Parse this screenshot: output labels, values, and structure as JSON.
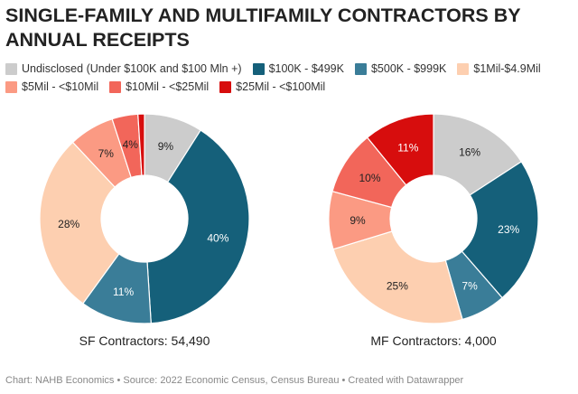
{
  "title": "SINGLE-FAMILY AND MULTIFAMILY CONTRACTORS BY ANNUAL RECEIPTS",
  "legend": [
    {
      "label": "Undisclosed (Under $100K and $100 Mln +)",
      "color": "#cccccc"
    },
    {
      "label": "$100K - $499K",
      "color": "#15607a"
    },
    {
      "label": "$500K - $999K",
      "color": "#3a7d98"
    },
    {
      "label": "$1Mil-$4.9Mil",
      "color": "#fdcfb0"
    },
    {
      "label": "$5Mil - <$10Mil",
      "color": "#fb9a83"
    },
    {
      "label": "$10Mil - <$25Mil",
      "color": "#f2665a"
    },
    {
      "label": "$25Mil - <$100Mil",
      "color": "#d70d0d"
    }
  ],
  "chart_data": [
    {
      "type": "pie",
      "subtype": "donut",
      "title": "SF Contractors: 54,490",
      "categories": [
        "Undisclosed (Under $100K and $100 Mln +)",
        "$100K - $499K",
        "$500K - $999K",
        "$1Mil-$4.9Mil",
        "$5Mil - <$10Mil",
        "$10Mil - <$25Mil",
        "$25Mil - <$100Mil"
      ],
      "values": [
        9,
        40,
        11,
        28,
        7,
        4,
        1
      ],
      "labels": [
        "9%",
        "40%",
        "11%",
        "28%",
        "7%",
        "4%",
        ""
      ]
    },
    {
      "type": "pie",
      "subtype": "donut",
      "title": "MF Contractors: 4,000",
      "categories": [
        "Undisclosed (Under $100K and $100 Mln +)",
        "$100K - $499K",
        "$500K - $999K",
        "$1Mil-$4.9Mil",
        "$5Mil - <$10Mil",
        "$10Mil - <$25Mil",
        "$25Mil - <$100Mil"
      ],
      "values": [
        16,
        23,
        7,
        25,
        9,
        10,
        11
      ],
      "labels": [
        "16%",
        "23%",
        "7%",
        "25%",
        "9%",
        "10%",
        "11%"
      ]
    }
  ],
  "footer": "Chart: NAHB Economics • Source: 2022 Economic Census, Census Bureau • Created with Datawrapper"
}
